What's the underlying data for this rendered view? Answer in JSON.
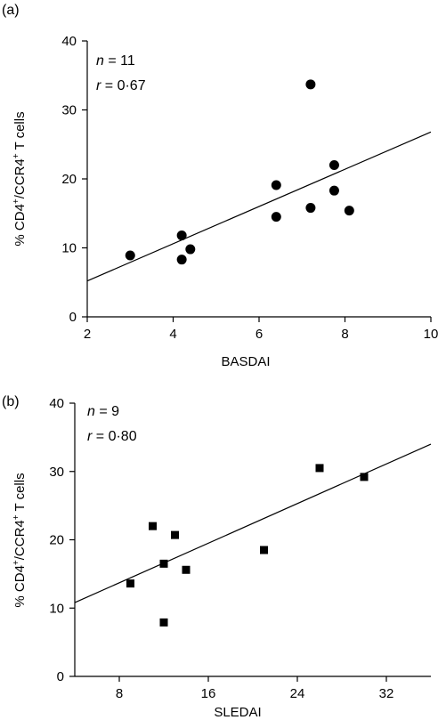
{
  "chart_data": [
    {
      "type": "scatter",
      "panel_label": "(a)",
      "xlabel": "BASDAI",
      "ylabel_parts": [
        "% CD4",
        "+",
        "/CCR4",
        "+",
        " T cells"
      ],
      "xlim": [
        2,
        10
      ],
      "ylim": [
        0,
        40
      ],
      "xticks": [
        2,
        4,
        6,
        8,
        10
      ],
      "yticks": [
        0,
        10,
        20,
        30,
        40
      ],
      "annotation": {
        "n_label": "n",
        "n_value": " = 11",
        "r_label": "r",
        "r_value": " = 0·67"
      },
      "marker": "circle",
      "points": [
        {
          "x": 3.0,
          "y": 8.9
        },
        {
          "x": 4.2,
          "y": 11.8
        },
        {
          "x": 4.2,
          "y": 8.3
        },
        {
          "x": 4.4,
          "y": 9.8
        },
        {
          "x": 6.4,
          "y": 19.1
        },
        {
          "x": 6.4,
          "y": 14.5
        },
        {
          "x": 7.2,
          "y": 33.7
        },
        {
          "x": 7.2,
          "y": 15.8
        },
        {
          "x": 7.75,
          "y": 22.0
        },
        {
          "x": 7.75,
          "y": 18.3
        },
        {
          "x": 8.1,
          "y": 15.4
        }
      ],
      "fit_line": {
        "x0": 2,
        "y0": 5.2,
        "x1": 10,
        "y1": 26.8
      }
    },
    {
      "type": "scatter",
      "panel_label": "(b)",
      "xlabel": "SLEDAI",
      "ylabel_parts": [
        "% CD4",
        "+",
        "/CCR4",
        "+",
        " T cells"
      ],
      "xlim": [
        4,
        36
      ],
      "ylim": [
        0,
        40
      ],
      "xticks": [
        8,
        16,
        24,
        32
      ],
      "yticks": [
        0,
        10,
        20,
        30,
        40
      ],
      "annotation": {
        "n_label": "n",
        "n_value": " = 9",
        "r_label": "r",
        "r_value": " = 0·80"
      },
      "marker": "square",
      "points": [
        {
          "x": 9,
          "y": 13.6
        },
        {
          "x": 11,
          "y": 22.0
        },
        {
          "x": 12,
          "y": 16.5
        },
        {
          "x": 12,
          "y": 7.9
        },
        {
          "x": 13,
          "y": 20.7
        },
        {
          "x": 14,
          "y": 15.6
        },
        {
          "x": 21,
          "y": 18.5
        },
        {
          "x": 26,
          "y": 30.5
        },
        {
          "x": 30,
          "y": 29.2
        }
      ],
      "fit_line": {
        "x0": 4,
        "y0": 10.8,
        "x1": 36,
        "y1": 34.0
      }
    }
  ]
}
